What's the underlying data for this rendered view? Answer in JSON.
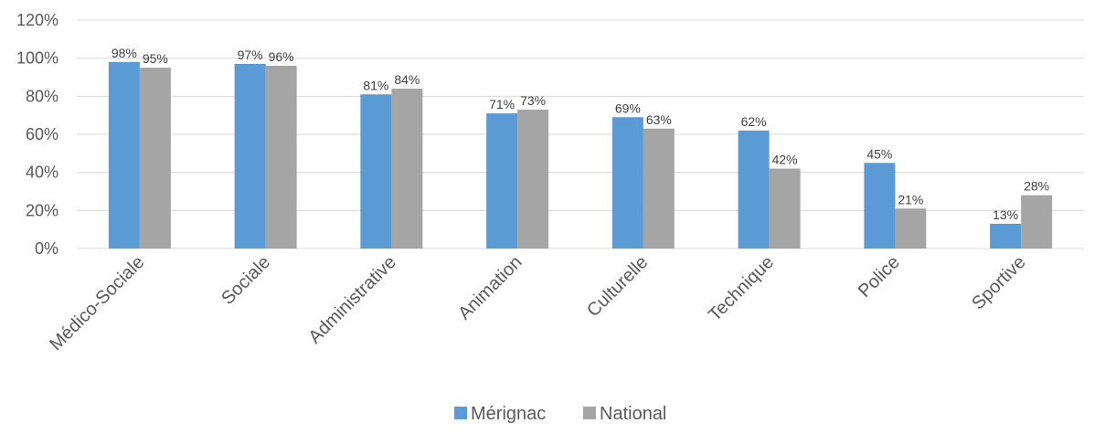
{
  "chart_data": {
    "type": "bar",
    "categories": [
      "Médico-Sociale",
      "Sociale",
      "Administrative",
      "Animation",
      "Culturelle",
      "Technique",
      "Police",
      "Sportive"
    ],
    "series": [
      {
        "name": "Mérignac",
        "values": [
          98,
          97,
          81,
          71,
          69,
          62,
          45,
          13
        ],
        "labels": [
          "98%",
          "97%",
          "81%",
          "71%",
          "69%",
          "62%",
          "45%",
          "13%"
        ],
        "color": "#5b9bd5"
      },
      {
        "name": "National",
        "values": [
          95,
          96,
          84,
          73,
          63,
          42,
          21,
          28
        ],
        "labels": [
          "95%",
          "96%",
          "84%",
          "73%",
          "63%",
          "42%",
          "21%",
          "28%"
        ],
        "color": "#a5a5a5"
      }
    ],
    "yticks": [
      "0%",
      "20%",
      "40%",
      "60%",
      "80%",
      "100%",
      "120%"
    ],
    "ylim": [
      0,
      120
    ],
    "grid": true,
    "legend_position": "bottom-center"
  }
}
